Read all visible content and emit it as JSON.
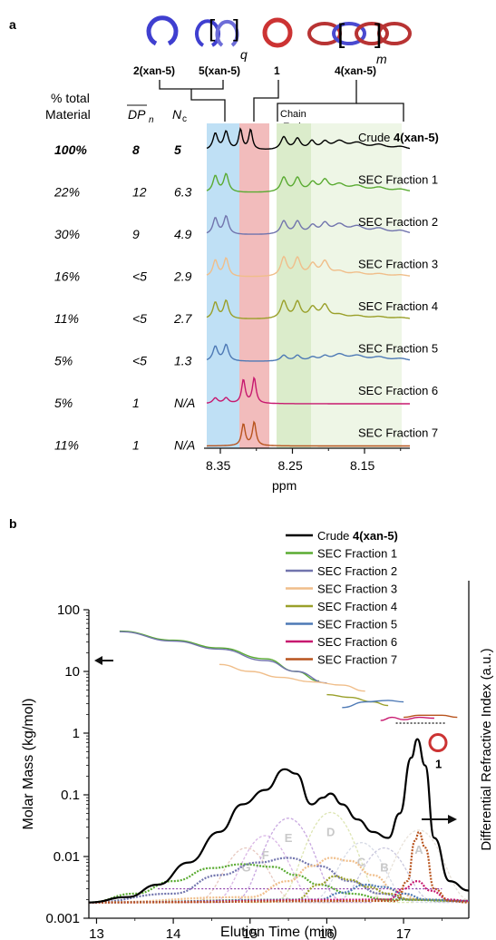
{
  "panel_a": {
    "label": "a",
    "structures": [
      {
        "label_text": "2(xan-5)"
      },
      {
        "label_text": "5(xan-5)",
        "subscript": "q"
      },
      {
        "label_text": "1"
      },
      {
        "label_text": "4(xan-5)",
        "subscript": "m"
      }
    ],
    "chain_ends_line1": "Chain",
    "chain_ends_line2": "Ends",
    "col_headers": {
      "pct_line1": "% total",
      "pct_line2": "Material",
      "dpn": "DP",
      "dpn_sub": "n",
      "nc": "N",
      "nc_sub": "c"
    },
    "rows": [
      {
        "pct": "100%",
        "dpn": "8",
        "nc": "5",
        "name_prefix": "Crude ",
        "name_bold": "4(xan-5)",
        "color": "#000000",
        "bold": true
      },
      {
        "pct": "22%",
        "dpn": "12",
        "nc": "6.3",
        "name_prefix": "SEC Fraction 1",
        "name_bold": "",
        "color": "#5aab32"
      },
      {
        "pct": "30%",
        "dpn": "9",
        "nc": "4.9",
        "name_prefix": "SEC Fraction 2",
        "name_bold": "",
        "color": "#7174ad"
      },
      {
        "pct": "16%",
        "dpn": "<5",
        "nc": "2.9",
        "name_prefix": "SEC Fraction 3",
        "name_bold": "",
        "color": "#f0be8a"
      },
      {
        "pct": "11%",
        "dpn": "<5",
        "nc": "2.7",
        "name_prefix": "SEC Fraction 4",
        "name_bold": "",
        "color": "#9aa02a"
      },
      {
        "pct": "5%",
        "dpn": "<5",
        "nc": "1.3",
        "name_prefix": "SEC Fraction 5",
        "name_bold": "",
        "color": "#4d79b5"
      },
      {
        "pct": "5%",
        "dpn": "1",
        "nc": "N/A",
        "name_prefix": "SEC Fraction 6",
        "name_bold": "",
        "color": "#c7196f"
      },
      {
        "pct": "11%",
        "dpn": "1",
        "nc": "N/A",
        "name_prefix": "SEC Fraction 7",
        "name_bold": "",
        "color": "#b8541e"
      }
    ],
    "x_ticks": [
      "8.35",
      "8.25",
      "8.15"
    ],
    "x_label": "ppm",
    "highlight_colors": {
      "blue": "#bfe0f5",
      "red": "#f2bcbc",
      "green": "#dbeccb",
      "lightgreen": "#eef6e6"
    }
  },
  "chart_data": {
    "type": "line",
    "label": "b",
    "xlabel": "Elution Time (min)",
    "ylabel": "Molar Mass (kg/mol)",
    "y2label": "Differential Refractive Index (a.u.)",
    "xlim": [
      12.9,
      17.85
    ],
    "ylim": [
      0.001,
      100
    ],
    "yscale": "log",
    "x_ticks": [
      "13",
      "14",
      "15",
      "16",
      "17"
    ],
    "y_ticks": [
      "0.001",
      "0.01",
      "0.1",
      "1",
      "10",
      "100"
    ],
    "legend_position": "top-right",
    "peak_labels": [
      "A",
      "B",
      "C",
      "D",
      "E",
      "F",
      "G"
    ],
    "peak_marker": "1",
    "series": [
      {
        "name": "Crude 4(xan-5)",
        "name_prefix": "Crude ",
        "name_bold": "4(xan-5)",
        "color": "#000000",
        "mass": [],
        "ri": [
          [
            12.9,
            0.0018
          ],
          [
            13.4,
            0.0022
          ],
          [
            13.8,
            0.0035
          ],
          [
            14.2,
            0.008
          ],
          [
            14.6,
            0.025
          ],
          [
            14.9,
            0.07
          ],
          [
            15.2,
            0.12
          ],
          [
            15.45,
            0.26
          ],
          [
            15.6,
            0.22
          ],
          [
            15.8,
            0.07
          ],
          [
            15.95,
            0.09
          ],
          [
            16.05,
            0.105
          ],
          [
            16.2,
            0.07
          ],
          [
            16.4,
            0.04
          ],
          [
            16.6,
            0.025
          ],
          [
            16.8,
            0.02
          ],
          [
            16.95,
            0.05
          ],
          [
            17.1,
            0.4
          ],
          [
            17.18,
            0.8
          ],
          [
            17.28,
            0.3
          ],
          [
            17.4,
            0.02
          ],
          [
            17.6,
            0.004
          ],
          [
            17.85,
            0.0028
          ]
        ]
      },
      {
        "name": "SEC Fraction 1",
        "name_prefix": "SEC Fraction 1",
        "name_bold": "",
        "color": "#5aab32",
        "mass": [
          [
            13.3,
            45
          ],
          [
            14.0,
            32
          ],
          [
            14.6,
            24
          ],
          [
            15.2,
            16
          ],
          [
            15.6,
            10
          ],
          [
            15.9,
            7
          ]
        ],
        "ri": [
          [
            12.9,
            0.0018
          ],
          [
            13.5,
            0.0025
          ],
          [
            14.0,
            0.004
          ],
          [
            14.5,
            0.0065
          ],
          [
            14.9,
            0.0075
          ],
          [
            15.3,
            0.0068
          ],
          [
            15.6,
            0.005
          ],
          [
            15.9,
            0.0035
          ],
          [
            16.3,
            0.0025
          ],
          [
            16.8,
            0.002
          ],
          [
            17.85,
            0.0019
          ]
        ]
      },
      {
        "name": "SEC Fraction 2",
        "name_prefix": "SEC Fraction 2",
        "name_bold": "",
        "color": "#7174ad",
        "mass": [
          [
            13.3,
            44
          ],
          [
            14.0,
            31
          ],
          [
            14.6,
            23
          ],
          [
            15.2,
            15
          ],
          [
            15.6,
            10
          ],
          [
            16.0,
            6.5
          ]
        ],
        "ri": [
          [
            12.9,
            0.0018
          ],
          [
            14.0,
            0.0025
          ],
          [
            14.6,
            0.005
          ],
          [
            15.1,
            0.008
          ],
          [
            15.5,
            0.0095
          ],
          [
            15.9,
            0.007
          ],
          [
            16.3,
            0.004
          ],
          [
            16.7,
            0.0025
          ],
          [
            17.1,
            0.002
          ],
          [
            17.85,
            0.0019
          ]
        ]
      },
      {
        "name": "SEC Fraction 3",
        "name_prefix": "SEC Fraction 3",
        "name_bold": "",
        "color": "#f0be8a",
        "mass": [
          [
            14.6,
            13
          ],
          [
            15.0,
            10
          ],
          [
            15.4,
            8
          ],
          [
            15.8,
            6.8
          ],
          [
            16.2,
            6
          ],
          [
            16.5,
            4.8
          ]
        ],
        "ri": [
          [
            12.9,
            0.0018
          ],
          [
            15.0,
            0.0022
          ],
          [
            15.5,
            0.004
          ],
          [
            15.8,
            0.007
          ],
          [
            16.05,
            0.0095
          ],
          [
            16.3,
            0.0085
          ],
          [
            16.6,
            0.005
          ],
          [
            16.9,
            0.0028
          ],
          [
            17.2,
            0.002
          ],
          [
            17.85,
            0.0019
          ]
        ]
      },
      {
        "name": "SEC Fraction 4",
        "name_prefix": "SEC Fraction 4",
        "name_bold": "",
        "color": "#9aa02a",
        "mass": [
          [
            16.0,
            4.2
          ],
          [
            16.3,
            3.8
          ],
          [
            16.6,
            3.2
          ],
          [
            16.8,
            2.8
          ]
        ],
        "ri": [
          [
            12.9,
            0.0018
          ],
          [
            15.6,
            0.002
          ],
          [
            15.9,
            0.0035
          ],
          [
            16.1,
            0.0048
          ],
          [
            16.3,
            0.0042
          ],
          [
            16.55,
            0.0032
          ],
          [
            16.8,
            0.0025
          ],
          [
            17.1,
            0.002
          ],
          [
            17.85,
            0.0019
          ]
        ]
      },
      {
        "name": "SEC Fraction 5",
        "name_prefix": "SEC Fraction 5",
        "name_bold": "",
        "color": "#4d79b5",
        "mass": [
          [
            16.2,
            2.6
          ],
          [
            16.5,
            3.2
          ],
          [
            16.8,
            3.4
          ],
          [
            17.0,
            3.2
          ]
        ],
        "ri": [
          [
            12.9,
            0.0018
          ],
          [
            15.9,
            0.002
          ],
          [
            16.2,
            0.0026
          ],
          [
            16.5,
            0.0035
          ],
          [
            16.75,
            0.0032
          ],
          [
            17.0,
            0.0025
          ],
          [
            17.3,
            0.002
          ],
          [
            17.85,
            0.0019
          ]
        ]
      },
      {
        "name": "SEC Fraction 6",
        "name_prefix": "SEC Fraction 6",
        "name_bold": "",
        "color": "#c7196f",
        "mass": [
          [
            16.7,
            1.6
          ],
          [
            16.85,
            1.8
          ],
          [
            17.0,
            1.65
          ],
          [
            17.2,
            1.8
          ],
          [
            17.4,
            1.75
          ]
        ],
        "ri": [
          [
            12.9,
            0.0018
          ],
          [
            16.8,
            0.002
          ],
          [
            17.0,
            0.003
          ],
          [
            17.18,
            0.004
          ],
          [
            17.35,
            0.0028
          ],
          [
            17.6,
            0.002
          ],
          [
            17.85,
            0.0019
          ]
        ]
      },
      {
        "name": "SEC Fraction 7",
        "name_prefix": "SEC Fraction 7",
        "name_bold": "",
        "color": "#b8541e",
        "mass": [
          [
            17.0,
            1.8
          ],
          [
            17.2,
            1.95
          ],
          [
            17.5,
            1.95
          ],
          [
            17.7,
            1.8
          ]
        ],
        "ri": [
          [
            12.9,
            0.0018
          ],
          [
            16.9,
            0.0019
          ],
          [
            17.05,
            0.004
          ],
          [
            17.15,
            0.018
          ],
          [
            17.2,
            0.025
          ],
          [
            17.28,
            0.014
          ],
          [
            17.4,
            0.003
          ],
          [
            17.6,
            0.0019
          ],
          [
            17.85,
            0.0018
          ]
        ]
      }
    ],
    "dashed_peaks": [
      {
        "label": "G",
        "center": 14.95,
        "color": "#e7c9c0"
      },
      {
        "label": "F",
        "center": 15.2,
        "color": "#d9b6e5"
      },
      {
        "label": "E",
        "center": 15.5,
        "color": "#c8a8e0"
      },
      {
        "label": "D",
        "center": 16.05,
        "color": "#dde5b3"
      },
      {
        "label": "C",
        "center": 16.45,
        "color": "#d7dbe6"
      },
      {
        "label": "B",
        "center": 16.75,
        "color": "#c9c7dd"
      },
      {
        "label": "A",
        "center": 17.2,
        "color": "#e8e2d9"
      }
    ]
  }
}
